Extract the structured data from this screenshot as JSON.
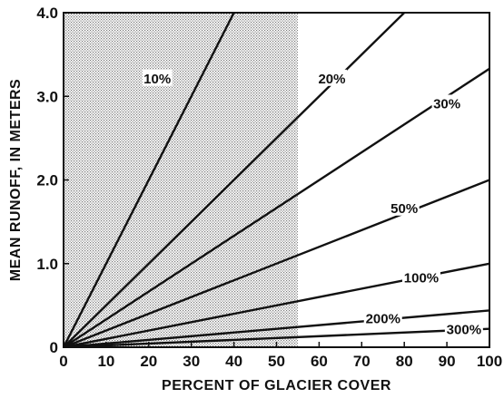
{
  "chart_data": {
    "type": "line",
    "title": "",
    "xlabel": "PERCENT OF GLACIER COVER",
    "ylabel": "MEAN RUNOFF, IN METERS",
    "xlim": [
      0,
      100
    ],
    "ylim": [
      0,
      4.0
    ],
    "x_ticks": [
      "0",
      "10",
      "20",
      "30",
      "40",
      "50",
      "60",
      "70",
      "80",
      "90",
      "100"
    ],
    "y_ticks": [
      "0",
      "1.0",
      "2.0",
      "3.0",
      "4.0"
    ],
    "x_tick_values": [
      0,
      10,
      20,
      30,
      40,
      50,
      60,
      70,
      80,
      90,
      100
    ],
    "y_tick_values": [
      0,
      1,
      2,
      3,
      4
    ],
    "grid": false,
    "shaded_region": {
      "x_from": 0,
      "x_to": 55,
      "pattern": "stipple"
    },
    "series": [
      {
        "label": "10%",
        "x": [
          0,
          40
        ],
        "y": [
          0,
          4.0
        ]
      },
      {
        "label": "20%",
        "x": [
          0,
          80
        ],
        "y": [
          0,
          4.0
        ]
      },
      {
        "label": "30%",
        "x": [
          0,
          100
        ],
        "y": [
          0,
          3.33
        ]
      },
      {
        "label": "50%",
        "x": [
          0,
          100
        ],
        "y": [
          0,
          2.0
        ]
      },
      {
        "label": "100%",
        "x": [
          0,
          100
        ],
        "y": [
          0,
          1.0
        ]
      },
      {
        "label": "200%",
        "x": [
          0,
          100
        ],
        "y": [
          0,
          0.44
        ]
      },
      {
        "label": "300%",
        "x": [
          0,
          100
        ],
        "y": [
          0,
          0.22
        ]
      }
    ],
    "label_positions": [
      {
        "label": "10%",
        "x": 22,
        "y": 3.2
      },
      {
        "label": "20%",
        "x": 63,
        "y": 3.2
      },
      {
        "label": "30%",
        "x": 90,
        "y": 2.9
      },
      {
        "label": "50%",
        "x": 80,
        "y": 1.65
      },
      {
        "label": "100%",
        "x": 84,
        "y": 0.82
      },
      {
        "label": "200%",
        "x": 75,
        "y": 0.33
      },
      {
        "label": "300%",
        "x": 94,
        "y": 0.2
      }
    ],
    "colors": {
      "line": "#111111",
      "stipple": "#7a7a7a",
      "background": "#ffffff"
    }
  }
}
